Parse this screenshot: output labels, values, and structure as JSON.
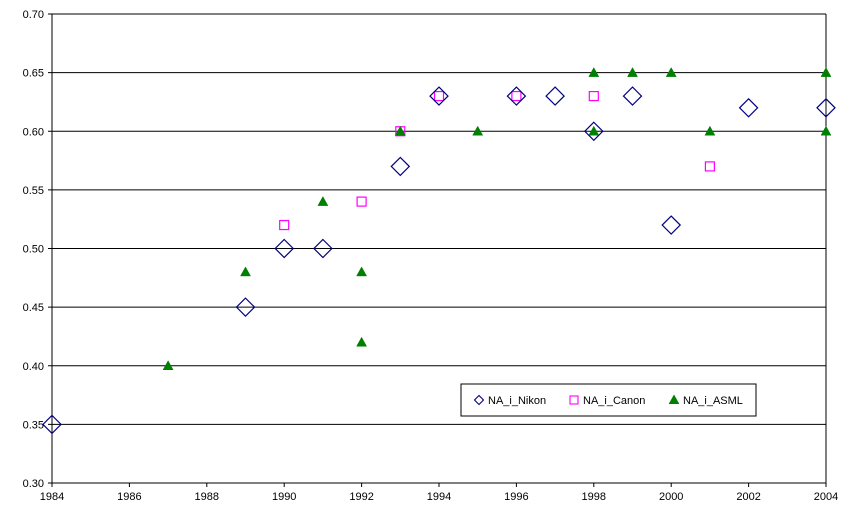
{
  "chart_data": {
    "type": "scatter",
    "title": "",
    "xlabel": "",
    "ylabel": "",
    "xlim": [
      1984,
      2004
    ],
    "ylim": [
      0.3,
      0.7
    ],
    "x_ticks": [
      1984,
      1986,
      1988,
      1990,
      1992,
      1994,
      1996,
      1998,
      2000,
      2002,
      2004
    ],
    "y_ticks": [
      0.3,
      0.35,
      0.4,
      0.45,
      0.5,
      0.55,
      0.6,
      0.65,
      0.7
    ],
    "x_tick_labels": [
      "1984",
      "1986",
      "1988",
      "1990",
      "1992",
      "1994",
      "1996",
      "1998",
      "2000",
      "2002",
      "2004"
    ],
    "y_tick_labels": [
      "0.30",
      "0.35",
      "0.40",
      "0.45",
      "0.50",
      "0.55",
      "0.60",
      "0.65",
      "0.70"
    ],
    "grid": "horizontal",
    "legend_position": "bottom-right",
    "series": [
      {
        "name": "NA_i_Nikon",
        "marker": "diamond-open",
        "color": "#000080",
        "points": [
          [
            1984,
            0.35
          ],
          [
            1989,
            0.45
          ],
          [
            1990,
            0.5
          ],
          [
            1991,
            0.5
          ],
          [
            1993,
            0.57
          ],
          [
            1994,
            0.63
          ],
          [
            1996,
            0.63
          ],
          [
            1997,
            0.63
          ],
          [
            1998,
            0.6
          ],
          [
            1999,
            0.63
          ],
          [
            2000,
            0.52
          ],
          [
            2002,
            0.62
          ],
          [
            2004,
            0.62
          ]
        ]
      },
      {
        "name": "NA_i_Canon",
        "marker": "square-open",
        "color": "#ff00ff",
        "points": [
          [
            1990,
            0.52
          ],
          [
            1992,
            0.54
          ],
          [
            1993,
            0.6
          ],
          [
            1994,
            0.63
          ],
          [
            1996,
            0.63
          ],
          [
            1998,
            0.63
          ],
          [
            2001,
            0.57
          ]
        ]
      },
      {
        "name": "NA_i_ASML",
        "marker": "triangle-filled",
        "color": "#008000",
        "points": [
          [
            1987,
            0.4
          ],
          [
            1989,
            0.48
          ],
          [
            1991,
            0.54
          ],
          [
            1992,
            0.48
          ],
          [
            1992,
            0.42
          ],
          [
            1993,
            0.6
          ],
          [
            1995,
            0.6
          ],
          [
            1998,
            0.65
          ],
          [
            1998,
            0.6
          ],
          [
            1999,
            0.65
          ],
          [
            2000,
            0.65
          ],
          [
            2001,
            0.6
          ],
          [
            2004,
            0.65
          ],
          [
            2004,
            0.6
          ]
        ]
      }
    ]
  }
}
